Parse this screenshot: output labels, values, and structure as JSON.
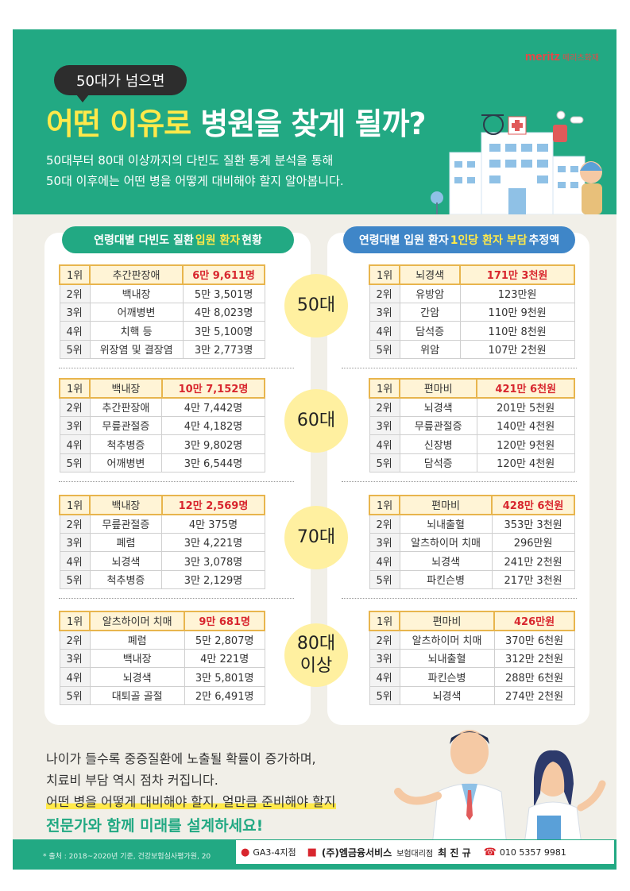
{
  "header": {
    "brand": "meritz",
    "brand_sub": "메리츠화재",
    "pill": "50대가 넘으면",
    "headline_highlight": "어떤 이유로",
    "headline_rest": "병원을 찾게 될까?",
    "sub_line1": "50대부터 80대 이상까지의 다빈도 질환 통계 분석을 통해",
    "sub_line2": "50대 이후에는 어떤 병을 어떻게 대비해야 할지 알아봅니다."
  },
  "left_panel": {
    "title_pre": "연령대별 다빈도 질환",
    "title_highlight": "입원 환자",
    "title_post": "현황"
  },
  "right_panel": {
    "title_pre": "연령대별 입원 환자",
    "title_highlight": "1인당 환자 부담",
    "title_post": "추정액"
  },
  "groups": [
    {
      "age": "50대",
      "left": [
        {
          "rank": "1위",
          "name": "추간판장애",
          "value": "6만 9,611명"
        },
        {
          "rank": "2위",
          "name": "백내장",
          "value": "5만 3,501명"
        },
        {
          "rank": "3위",
          "name": "어깨병변",
          "value": "4만 8,023명"
        },
        {
          "rank": "4위",
          "name": "치핵 등",
          "value": "3만 5,100명"
        },
        {
          "rank": "5위",
          "name": "위장염 및 결장염",
          "value": "3만 2,773명"
        }
      ],
      "right": [
        {
          "rank": "1위",
          "name": "뇌경색",
          "value": "171만 3천원"
        },
        {
          "rank": "2위",
          "name": "유방암",
          "value": "123만원"
        },
        {
          "rank": "3위",
          "name": "간암",
          "value": "110만 9천원"
        },
        {
          "rank": "4위",
          "name": "담석증",
          "value": "110만 8천원"
        },
        {
          "rank": "5위",
          "name": "위암",
          "value": "107만 2천원"
        }
      ]
    },
    {
      "age": "60대",
      "left": [
        {
          "rank": "1위",
          "name": "백내장",
          "value": "10만 7,152명"
        },
        {
          "rank": "2위",
          "name": "추간판장애",
          "value": "4만 7,442명"
        },
        {
          "rank": "3위",
          "name": "무릎관절증",
          "value": "4만 4,182명"
        },
        {
          "rank": "4위",
          "name": "척추병증",
          "value": "3만 9,802명"
        },
        {
          "rank": "5위",
          "name": "어깨병변",
          "value": "3만 6,544명"
        }
      ],
      "right": [
        {
          "rank": "1위",
          "name": "편마비",
          "value": "421만 6천원"
        },
        {
          "rank": "2위",
          "name": "뇌경색",
          "value": "201만 5천원"
        },
        {
          "rank": "3위",
          "name": "무릎관절증",
          "value": "140만 4천원"
        },
        {
          "rank": "4위",
          "name": "신장병",
          "value": "120만 9천원"
        },
        {
          "rank": "5위",
          "name": "담석증",
          "value": "120만 4천원"
        }
      ]
    },
    {
      "age": "70대",
      "left": [
        {
          "rank": "1위",
          "name": "백내장",
          "value": "12만 2,569명"
        },
        {
          "rank": "2위",
          "name": "무릎관절증",
          "value": "4만 375명"
        },
        {
          "rank": "3위",
          "name": "폐렴",
          "value": "3만 4,221명"
        },
        {
          "rank": "4위",
          "name": "뇌경색",
          "value": "3만 3,078명"
        },
        {
          "rank": "5위",
          "name": "척추병증",
          "value": "3만 2,129명"
        }
      ],
      "right": [
        {
          "rank": "1위",
          "name": "편마비",
          "value": "428만 6천원"
        },
        {
          "rank": "2위",
          "name": "뇌내출혈",
          "value": "353만 3천원"
        },
        {
          "rank": "3위",
          "name": "알츠하이머 치매",
          "value": "296만원"
        },
        {
          "rank": "4위",
          "name": "뇌경색",
          "value": "241만 2천원"
        },
        {
          "rank": "5위",
          "name": "파킨슨병",
          "value": "217만 3천원"
        }
      ]
    },
    {
      "age": "80대",
      "age_sub": "이상",
      "left": [
        {
          "rank": "1위",
          "name": "알츠하이머 치매",
          "value": "9만 681명"
        },
        {
          "rank": "2위",
          "name": "폐렴",
          "value": "5만 2,807명"
        },
        {
          "rank": "3위",
          "name": "백내장",
          "value": "4만 221명"
        },
        {
          "rank": "4위",
          "name": "뇌경색",
          "value": "3만 5,801명"
        },
        {
          "rank": "5위",
          "name": "대퇴골 골절",
          "value": "2만 6,491명"
        }
      ],
      "right": [
        {
          "rank": "1위",
          "name": "편마비",
          "value": "426만원"
        },
        {
          "rank": "2위",
          "name": "알츠하이머 치매",
          "value": "370만 6천원"
        },
        {
          "rank": "3위",
          "name": "뇌내출혈",
          "value": "312만 2천원"
        },
        {
          "rank": "4위",
          "name": "파킨슨병",
          "value": "288만 6천원"
        },
        {
          "rank": "5위",
          "name": "뇌경색",
          "value": "274만 2천원"
        }
      ]
    }
  ],
  "bottom": {
    "line1": "나이가 들수록 중증질환에 노출될 확률이 증가하며,",
    "line2": "치료비 부담 역시 점차 커집니다.",
    "line3": "어떤 병을 어떻게 대비해야 할지, 얼만큼 준비해야 할지",
    "cta": "전문가와 함께 미래를 설계하세요!"
  },
  "footer": {
    "source": "* 출처 : 2018~2020년 기준, 건강보험심사평가원, 20",
    "branch": "GA3-4지점",
    "company": "(주)엠금융서비스",
    "role": "보험대리점",
    "name": "최 진 규",
    "phone": "010 5357 9981"
  },
  "colors": {
    "green": "#22a983",
    "blue": "#3f86c8",
    "yellow": "#ffe94a",
    "red": "#d8262e",
    "circle": "#fff0a0"
  }
}
